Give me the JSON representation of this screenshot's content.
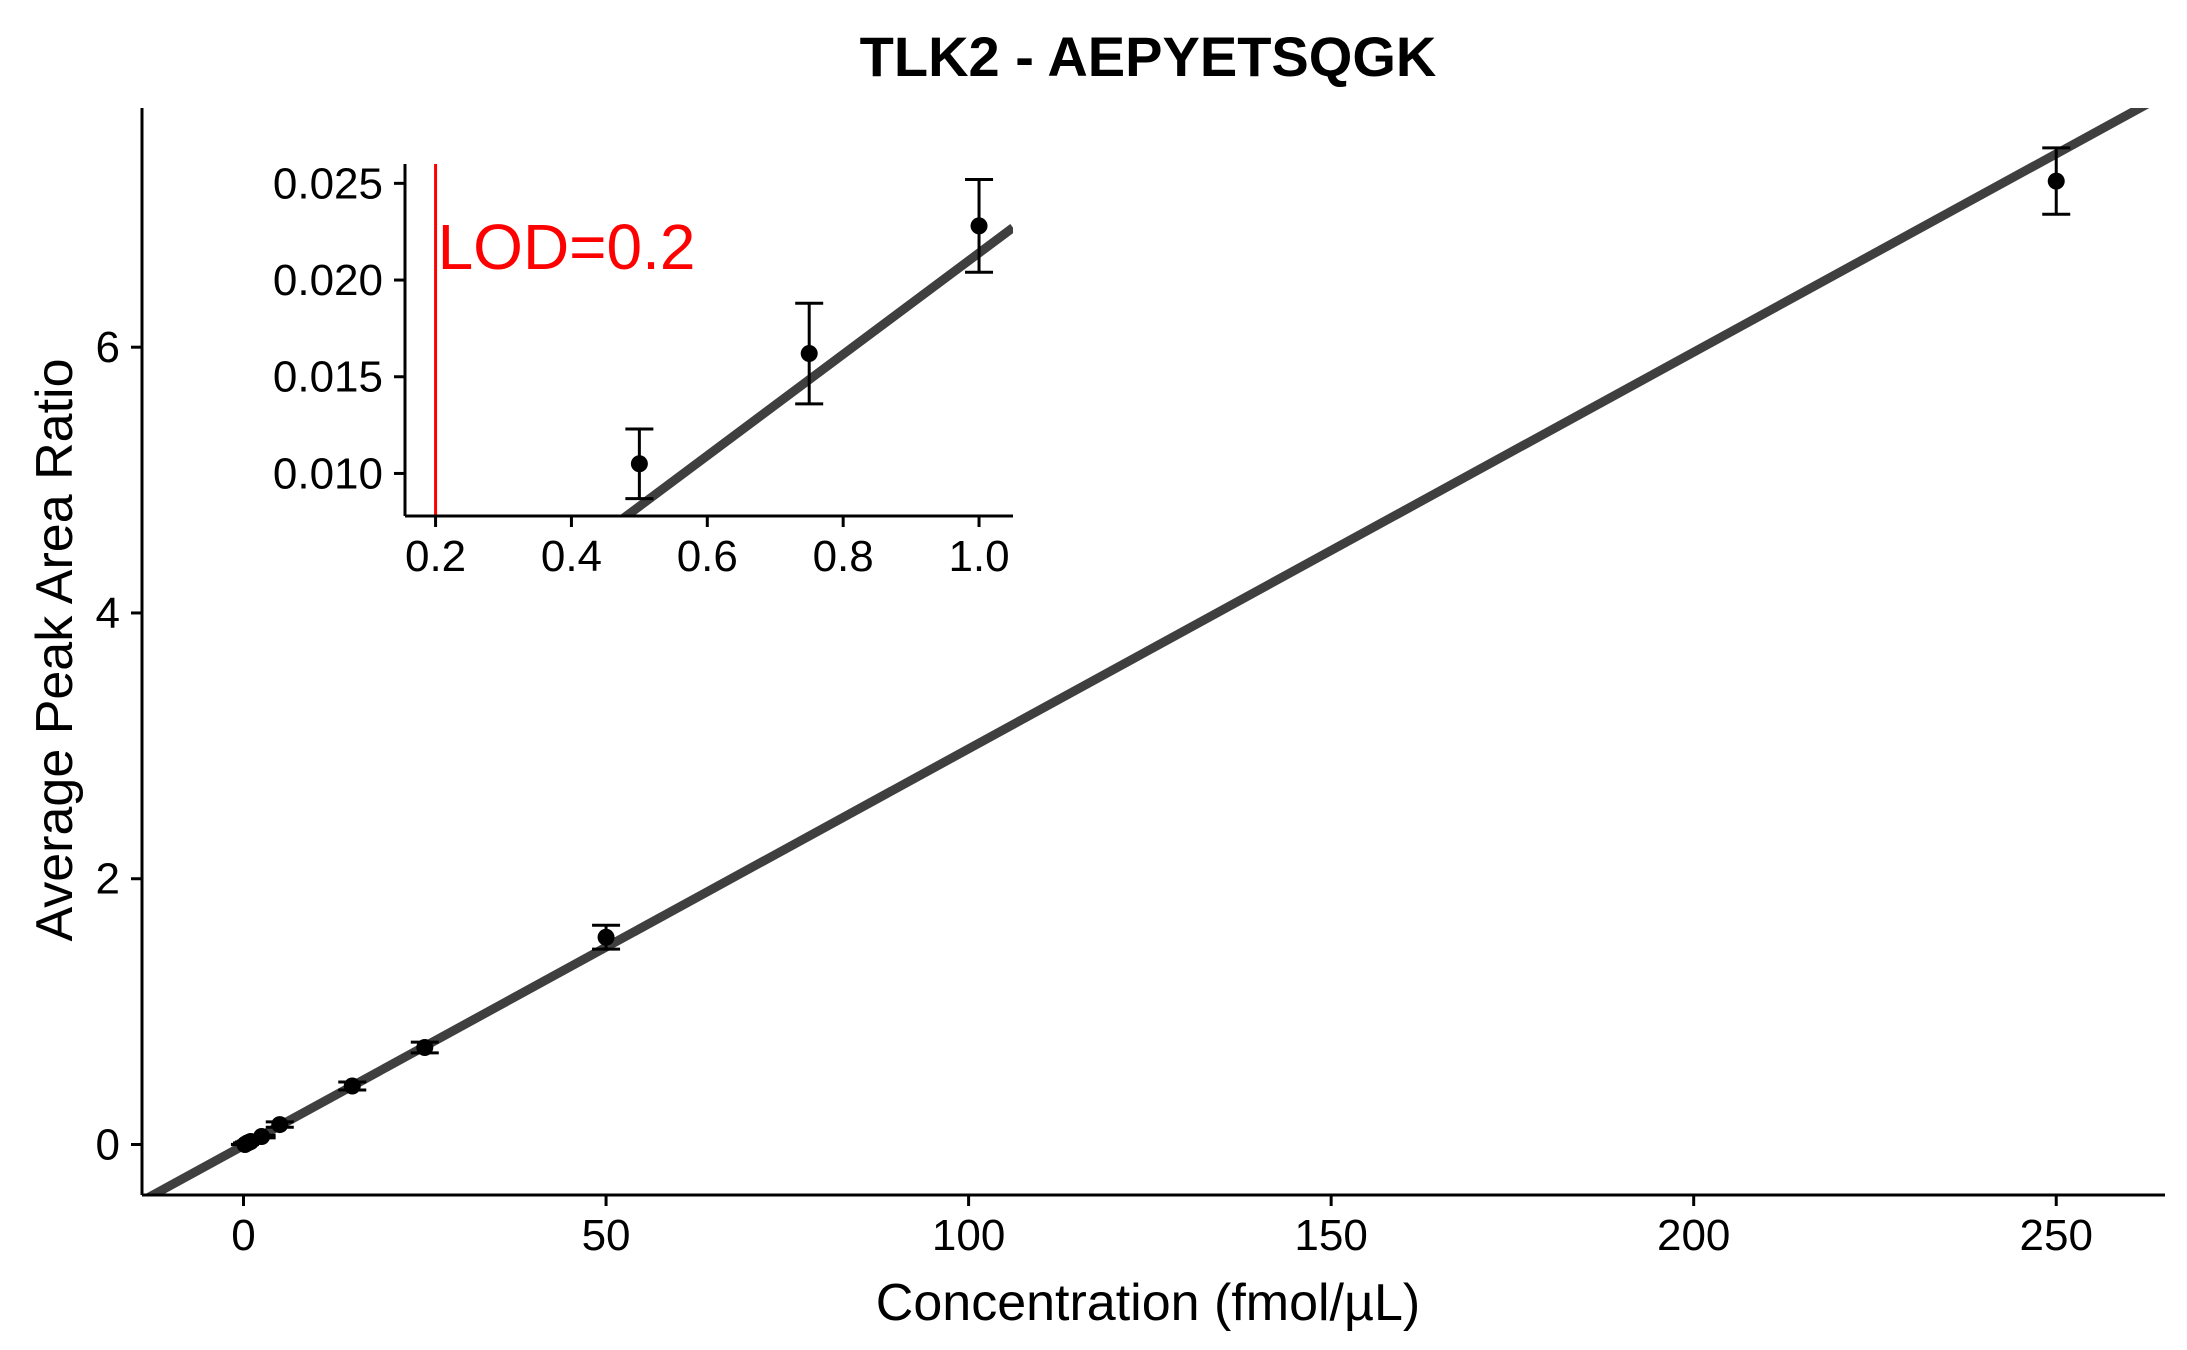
{
  "colors": {
    "fit_line": "#3f3f3f",
    "points": "#000000",
    "lod": "#ff0000",
    "axes": "#000000"
  },
  "chart_data": [
    {
      "type": "scatter",
      "title": "TLK2 - AEPYETSQGK",
      "xlabel": "Concentration (fmol/µL)",
      "ylabel": "Average Peak Area Ratio",
      "xlim": [
        -14,
        265
      ],
      "ylim": [
        -0.38,
        7.8
      ],
      "xticks": [
        0,
        50,
        100,
        150,
        200,
        250
      ],
      "xtick_labels": [
        "0",
        "50",
        "100",
        "150",
        "200",
        "250"
      ],
      "yticks": [
        0,
        2,
        4,
        6
      ],
      "ytick_labels": [
        "0",
        "2",
        "4",
        "6"
      ],
      "grid": false,
      "series": [
        {
          "x": [
            0.2,
            0.5,
            0.75,
            1.0,
            2.5,
            5,
            15,
            25,
            50,
            250
          ],
          "y": [
            0.0,
            0.0105,
            0.0162,
            0.0228,
            0.06,
            0.15,
            0.44,
            0.73,
            1.56,
            7.25
          ],
          "yerr": [
            0.001,
            0.0018,
            0.0026,
            0.0024,
            0.01,
            0.02,
            0.03,
            0.04,
            0.09,
            0.25
          ]
        }
      ],
      "fit_line": {
        "slope": 0.02985,
        "intercept": -0.0073
      }
    },
    {
      "type": "scatter",
      "inset": true,
      "xlim": [
        0.155,
        1.05
      ],
      "ylim": [
        0.0078,
        0.026
      ],
      "xticks": [
        0.2,
        0.4,
        0.6,
        0.8,
        1.0
      ],
      "xtick_labels": [
        "0.2",
        "0.4",
        "0.6",
        "0.8",
        "1.0"
      ],
      "yticks": [
        0.01,
        0.015,
        0.02,
        0.025
      ],
      "ytick_labels": [
        "0.010",
        "0.015",
        "0.020",
        "0.025"
      ],
      "series": [
        {
          "x": [
            0.5,
            0.75,
            1.0
          ],
          "y": [
            0.0105,
            0.0162,
            0.0228
          ],
          "yerr": [
            0.0018,
            0.0026,
            0.0024
          ]
        }
      ],
      "fit_line": {
        "slope": 0.0262,
        "intercept": -0.0048
      },
      "lod": {
        "x": 0.2,
        "label": "LOD=0.2"
      }
    }
  ]
}
